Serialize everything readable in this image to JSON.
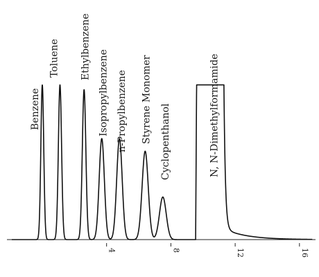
{
  "chart_data": {
    "type": "line",
    "title": "",
    "xlabel": "",
    "ylabel": "",
    "xlim": [
      -2.2,
      17
    ],
    "ylim": [
      0,
      1
    ],
    "x_ticks": [
      {
        "value": 4,
        "label": "4"
      },
      {
        "value": 8,
        "label": "8"
      },
      {
        "value": 12,
        "label": "12"
      },
      {
        "value": 16,
        "label": "16"
      }
    ],
    "peaks": [
      {
        "name": "Benzene",
        "x": 0.0,
        "height": 0.98,
        "width": 0.09
      },
      {
        "name": "Toluene",
        "x": 1.1,
        "height": 0.98,
        "width": 0.1
      },
      {
        "name": "Ethylbenzene",
        "x": 2.6,
        "height": 0.95,
        "width": 0.11
      },
      {
        "name": "Isopropylbenzene",
        "x": 3.7,
        "height": 0.64,
        "width": 0.16
      },
      {
        "name": "n-Propylbenzene",
        "x": 4.8,
        "height": 0.64,
        "width": 0.17
      },
      {
        "name": "Styrene Monomer",
        "x": 6.4,
        "height": 0.56,
        "width": 0.19
      },
      {
        "name": "Cyclopenthanol",
        "x": 7.5,
        "height": 0.27,
        "width": 0.21
      },
      {
        "name": "N, N-Dimethylformamide",
        "x": 9.6,
        "x_end": 11.3,
        "height": 0.98,
        "type": "plateau"
      }
    ]
  }
}
